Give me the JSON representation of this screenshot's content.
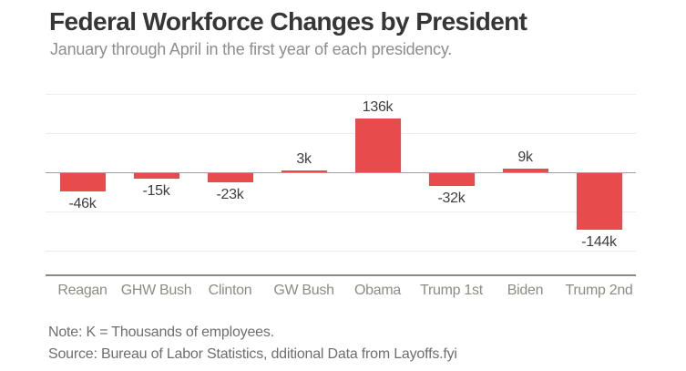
{
  "header": {
    "title": "Federal Workforce Changes by President",
    "subtitle": "January through April in the first year of each presidency."
  },
  "footer": {
    "note": "Note: K = Thousands of employees.",
    "source": "Source: Bureau of Labor Statistics, dditional Data from Layoffs.fyi"
  },
  "chart_data": {
    "type": "bar",
    "title": "Federal Workforce Changes by President",
    "subtitle": "January through April in the first year of each presidency.",
    "categories": [
      "Reagan",
      "GHW Bush",
      "Clinton",
      "GW Bush",
      "Obama",
      "Trump 1st",
      "Biden",
      "Trump 2nd"
    ],
    "values": [
      -46,
      -15,
      -23,
      3,
      136,
      -32,
      9,
      -144
    ],
    "value_labels": [
      "-46k",
      "-15k",
      "-23k",
      "3k",
      "136k",
      "-32k",
      "9k",
      "-144k"
    ],
    "unit": "thousands of employees",
    "ylabel": "",
    "xlabel": "",
    "ylim": [
      -250,
      220
    ],
    "gridlines": [
      200,
      100,
      0,
      -100,
      -200
    ],
    "grid": "horizontal",
    "legend": "none",
    "bar_color": "#e84b4b",
    "zero_line_color": "#a0a0a0",
    "gridline_color": "#ededed",
    "baseline_color": "#8b8b81",
    "value_label_color": "#3e3e3e",
    "category_label_color": "#8c8c86"
  }
}
